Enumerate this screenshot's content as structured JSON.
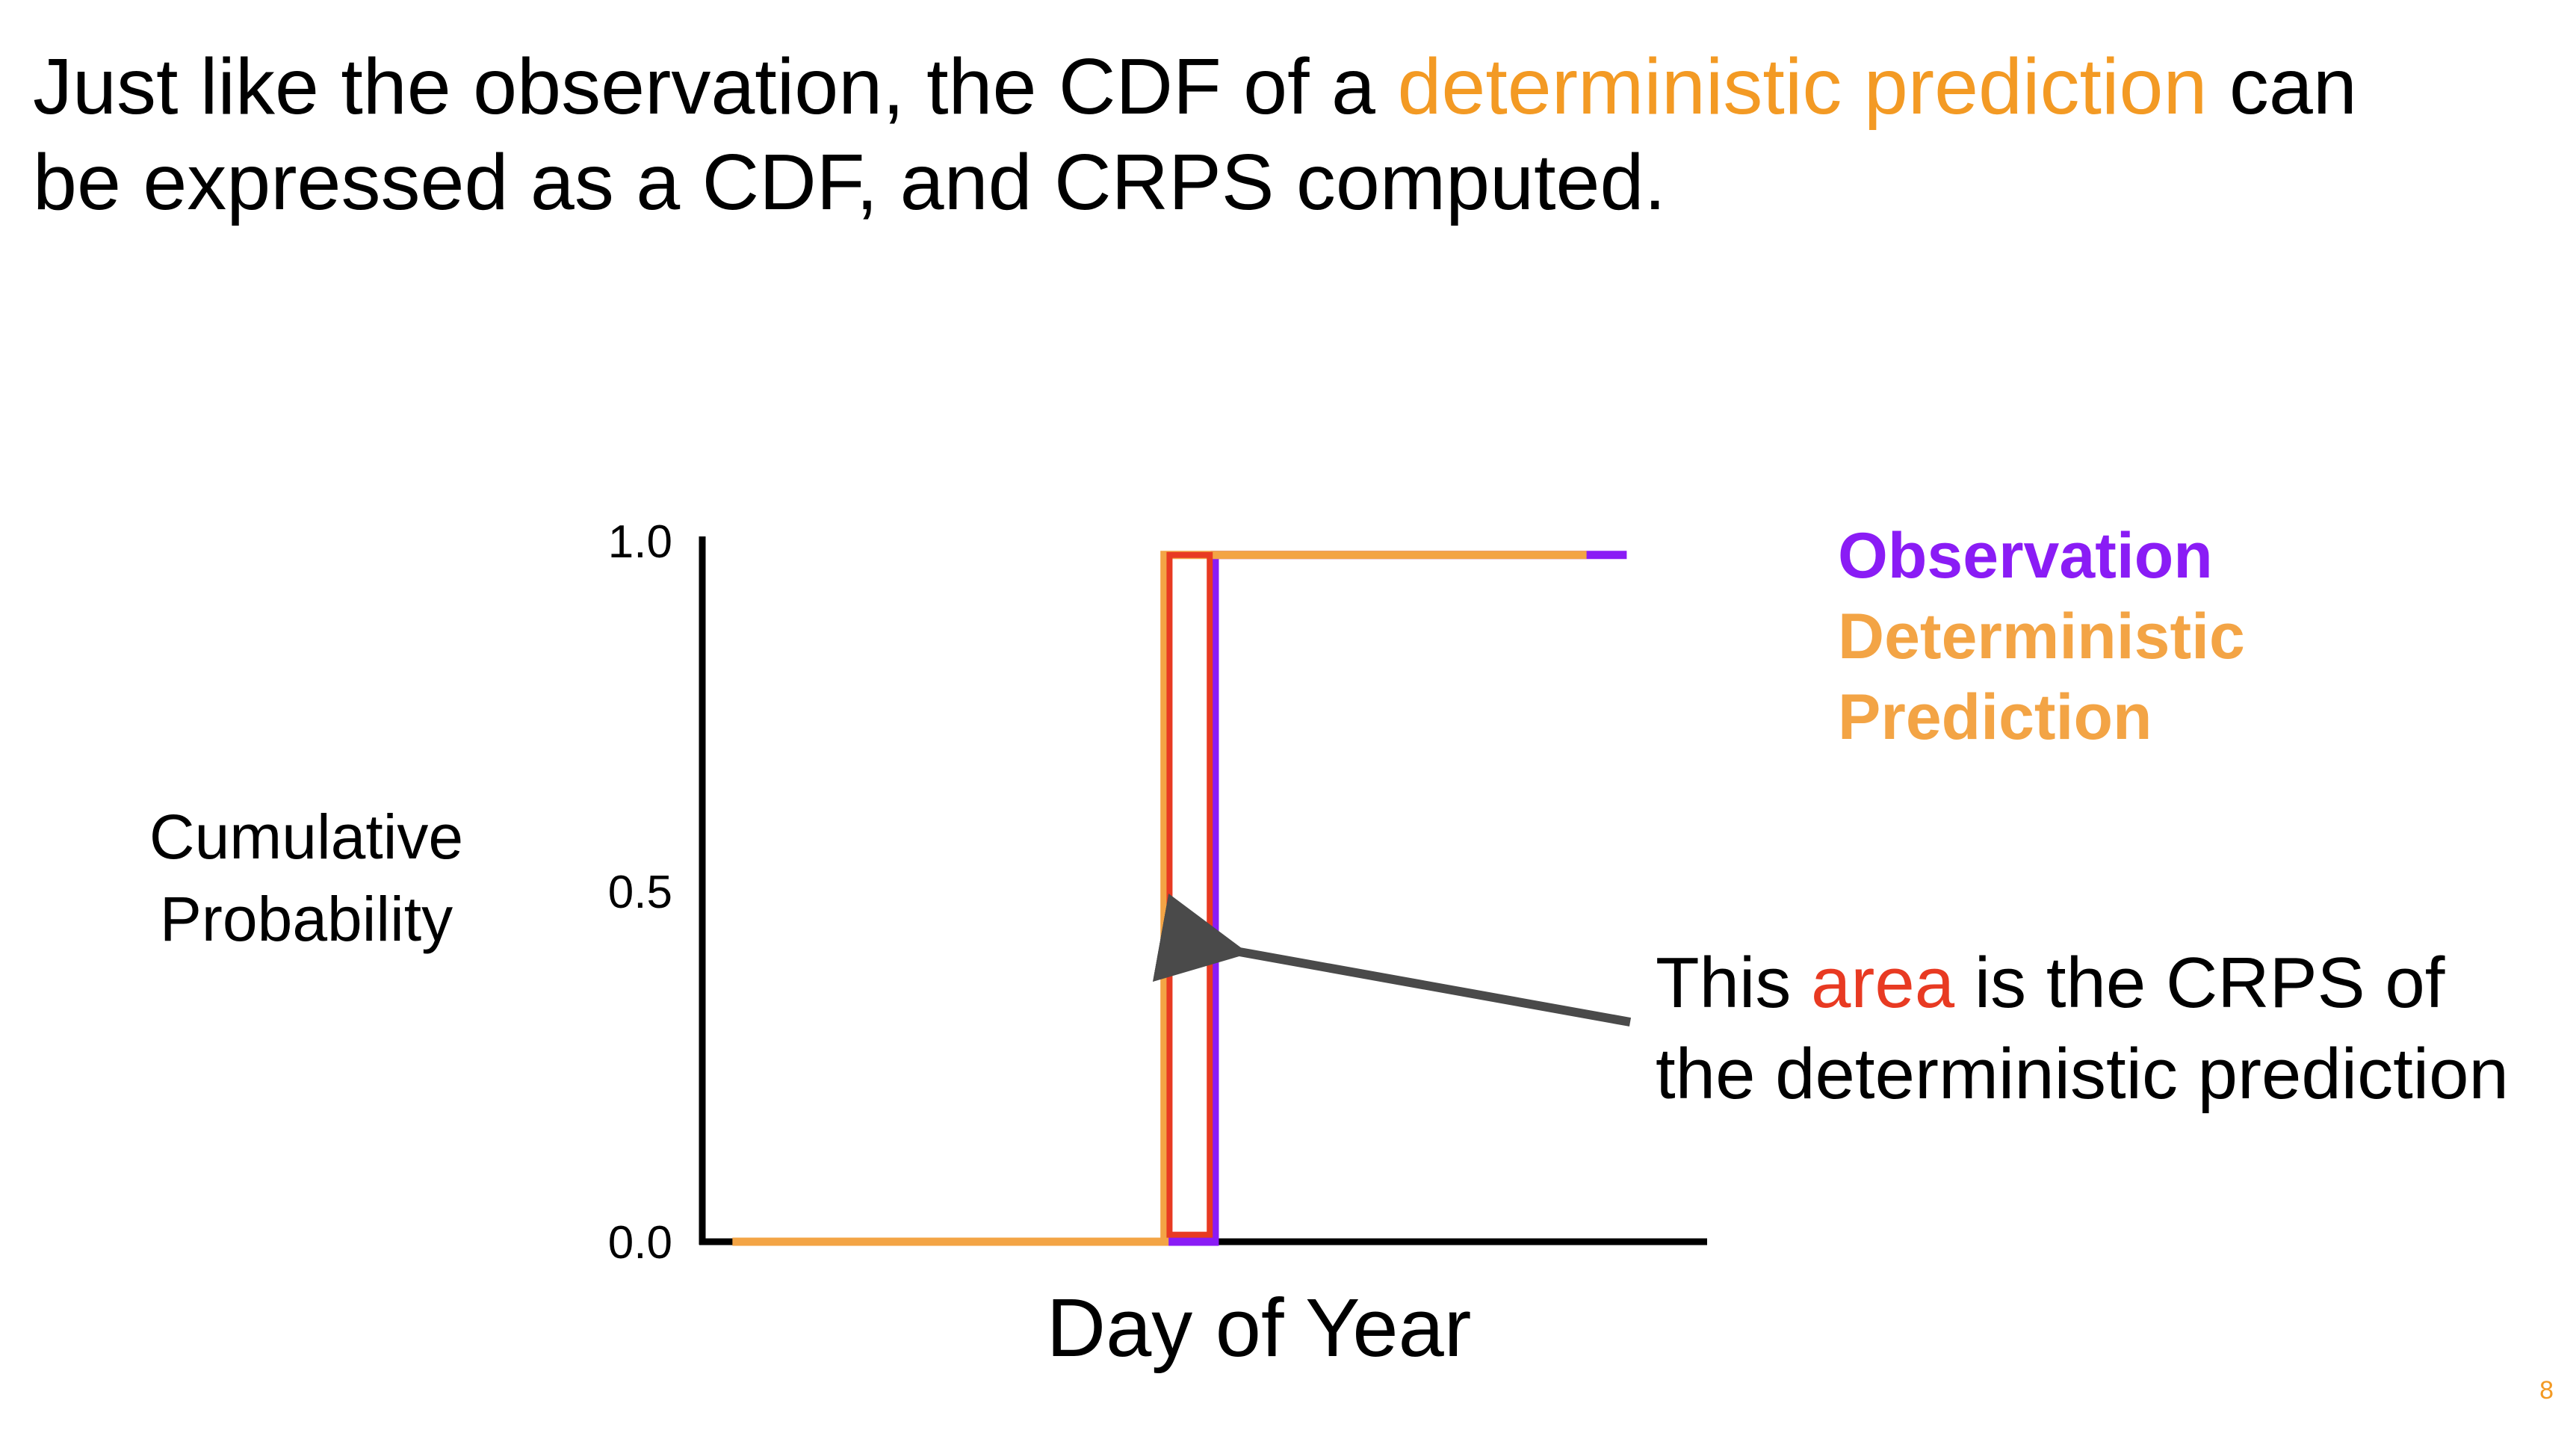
{
  "title": {
    "part1": "Just like the observation, the CDF of a ",
    "highlight": "deterministic prediction",
    "part2": " can",
    "line2": "be expressed as a CDF, and CRPS computed."
  },
  "colors": {
    "observation": "#8A1CF5",
    "prediction": "#F3A445",
    "area": "#E83A22",
    "arrow": "#4A4A4A",
    "axis": "#000000",
    "highlight_text": "#F39A24"
  },
  "annotation": {
    "line1_part1": "This ",
    "line1_area": "area",
    "line1_part2": " is the CRPS of",
    "line2": "the deterministic prediction"
  },
  "slide_number": "8",
  "chart_data": {
    "type": "line",
    "xlabel": "Day of Year",
    "ylabel": "Cumulative Probability",
    "y_ticks": [
      {
        "value": 0.0,
        "label": "0.0"
      },
      {
        "value": 0.5,
        "label": "0.5"
      },
      {
        "value": 1.0,
        "label": "1.0"
      }
    ],
    "ylim": [
      0,
      1
    ],
    "xlim": [
      0,
      100
    ],
    "x_ticks_shown": false,
    "grid": false,
    "legend_placement": "top-right",
    "legend": [
      {
        "label": "Observation",
        "color": "#8A1CF5"
      },
      {
        "label": "Deterministic",
        "color": "#F3A445"
      },
      {
        "label": "Prediction",
        "color": "#F3A445"
      }
    ],
    "series": [
      {
        "name": "Observation",
        "color": "#8A1CF5",
        "x": [
          46,
          51,
          51,
          92
        ],
        "y": [
          0,
          0,
          0.98,
          0.98
        ]
      },
      {
        "name": "Deterministic Prediction",
        "color": "#F3A445",
        "x": [
          3,
          46,
          46,
          88
        ],
        "y": [
          0,
          0,
          0.98,
          0.98
        ]
      }
    ],
    "crps_area": {
      "x0": 46.5,
      "x1": 50.5,
      "y0": 0.01,
      "y1": 0.98,
      "color": "#E83A22"
    }
  }
}
